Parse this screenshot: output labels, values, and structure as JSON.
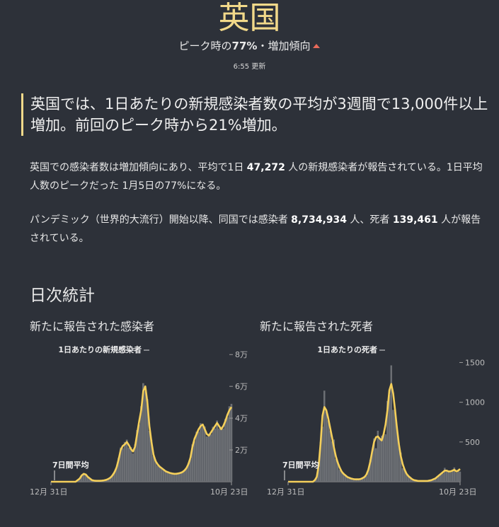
{
  "header": {
    "title": "英国",
    "subtitle_prefix": "ピーク時の",
    "subtitle_pct": "77%",
    "subtitle_suffix": "・増加傾向",
    "updated": "6:55 更新"
  },
  "lead": "英国では、1日あたりの新規感染者数の平均が3週間で13,000件以上増加。前回のピーク時から21%増加。",
  "para1": {
    "t1": "英国での感染者数は増加傾向にあり、平均で1日 ",
    "cases": "47,272",
    "t2": " 人の新規感染者が報告されている。1日平均人数のピークだった 1月5日の77%になる。"
  },
  "para2": {
    "t1": "パンデミック（世界的大流行）開始以降、同国では感染者 ",
    "total_cases": "8,734,934",
    "t2": " 人、死者 ",
    "total_deaths": "139,461",
    "t3": " 人が報告されている。"
  },
  "section_title": "日次統計",
  "chart_data": [
    {
      "type": "area",
      "title": "新たに報告された感染者",
      "series": [
        {
          "name": "1日あたりの新規感染者",
          "kind": "bars"
        },
        {
          "name": "7日間平均",
          "kind": "line"
        }
      ],
      "x_start_label": "12月 31日",
      "x_end_label": "10月 23日",
      "ylim": [
        0,
        85000
      ],
      "y_ticks": [
        20000,
        40000,
        60000,
        80000
      ],
      "y_tick_labels": [
        "2万",
        "4万",
        "6万",
        "8万"
      ],
      "avg": [
        0,
        0,
        0,
        0,
        0,
        0,
        0,
        0,
        0,
        0,
        0,
        0,
        0,
        1000,
        2000,
        4000,
        5000,
        4500,
        3000,
        2000,
        1000,
        700,
        600,
        600,
        600,
        700,
        900,
        1200,
        1800,
        2600,
        4000,
        6000,
        9000,
        14000,
        20000,
        22500,
        23500,
        25000,
        23000,
        20500,
        19000,
        22000,
        30000,
        38000,
        45000,
        57000,
        60000,
        50000,
        35000,
        25000,
        17000,
        13000,
        11000,
        9500,
        8500,
        7500,
        6500,
        6000,
        5500,
        5200,
        5000,
        5000,
        5200,
        5500,
        6000,
        7000,
        8500,
        11000,
        15000,
        22000,
        27000,
        30000,
        33000,
        35000,
        36000,
        33000,
        30000,
        29000,
        31000,
        33000,
        35000,
        37000,
        35000,
        33000,
        35000,
        38000,
        42000,
        45000,
        47000
      ],
      "bars": [
        0,
        0,
        0,
        0,
        0,
        0,
        0,
        0,
        0,
        0,
        0,
        0,
        0,
        1100,
        2300,
        3900,
        5400,
        4300,
        2800,
        2100,
        1000,
        680,
        560,
        640,
        580,
        740,
        870,
        1300,
        1700,
        2800,
        4300,
        6500,
        8400,
        15000,
        21500,
        21000,
        25000,
        26500,
        21500,
        21800,
        17800,
        23500,
        32500,
        36000,
        47500,
        62000,
        57000,
        52000,
        32000,
        26500,
        16000,
        13800,
        10300,
        10000,
        8100,
        7900,
        6200,
        6300,
        5300,
        5400,
        4800,
        5200,
        5000,
        5700,
        5800,
        7400,
        8100,
        11700,
        14200,
        23500,
        25500,
        31500,
        31500,
        36800,
        34500,
        34800,
        28500,
        30200,
        29800,
        34600,
        33500,
        38500,
        33500,
        34600,
        33500,
        39500,
        40500,
        47500,
        49000
      ]
    },
    {
      "type": "area",
      "title": "新たに報告された死者",
      "series": [
        {
          "name": "1日あたりの死者",
          "kind": "bars"
        },
        {
          "name": "7日間平均",
          "kind": "line"
        }
      ],
      "x_start_label": "12月 31日",
      "x_end_label": "10月 23日",
      "ylim": [
        0,
        1700
      ],
      "y_ticks": [
        500,
        1000,
        1500
      ],
      "y_tick_labels": [
        "500",
        "1000",
        "1500"
      ],
      "avg": [
        0,
        0,
        0,
        0,
        0,
        0,
        0,
        0,
        0,
        0,
        0,
        0,
        0,
        0,
        20,
        60,
        200,
        480,
        830,
        940,
        900,
        800,
        680,
        560,
        430,
        320,
        240,
        180,
        130,
        100,
        80,
        60,
        50,
        40,
        35,
        30,
        30,
        30,
        35,
        45,
        60,
        90,
        150,
        250,
        380,
        500,
        560,
        570,
        540,
        520,
        600,
        720,
        900,
        1150,
        1230,
        1110,
        900,
        670,
        470,
        320,
        220,
        150,
        100,
        70,
        50,
        30,
        20,
        15,
        10,
        10,
        10,
        10,
        10,
        10,
        15,
        20,
        30,
        40,
        60,
        80,
        100,
        120,
        140,
        140,
        130,
        130,
        140,
        150,
        130,
        140,
        160
      ]
    }
  ]
}
